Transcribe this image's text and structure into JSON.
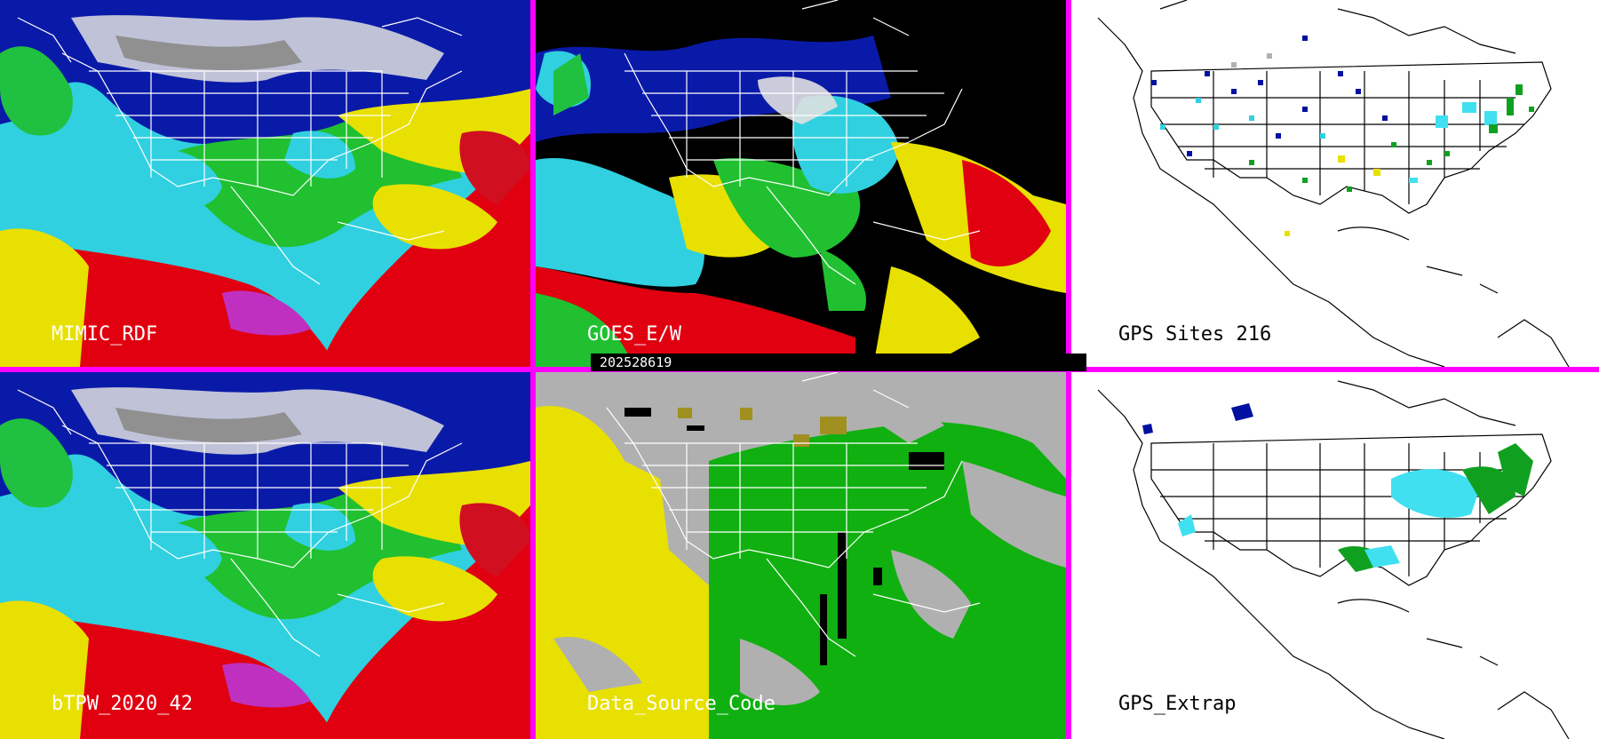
{
  "panels": [
    {
      "label": "MIMIC_RDF",
      "style": "tpw"
    },
    {
      "label": "GOES_E/W",
      "style": "goes"
    },
    {
      "label": "GPS Sites",
      "count": "216",
      "style": "gps"
    },
    {
      "label": "bTPW_2020_42",
      "style": "tpw"
    },
    {
      "label": "Data_Source_Code",
      "style": "source"
    },
    {
      "label": "GPS_Extrap",
      "style": "gpsx"
    }
  ],
  "timestamp": "202528619",
  "colors": {
    "border": "#ff00ff",
    "red": "#e00010",
    "yellow": "#e8e000",
    "green": "#10d010",
    "cyan": "#40e0f0",
    "blue": "#0010a0",
    "gray": "#b0b0b0",
    "white": "#ffffff",
    "black": "#000000"
  }
}
